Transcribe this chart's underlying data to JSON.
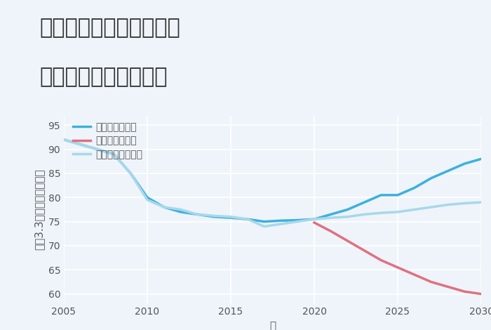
{
  "title_line1": "奈良県奈良市鹿野園町の",
  "title_line2": "中古戸建ての価格推移",
  "xlabel": "年",
  "ylabel": "坪（3.3㎡）単価（万円）",
  "background_color": "#eef4fa",
  "plot_bg_color": "#eef4fa",
  "grid_color": "#ffffff",
  "ylim": [
    58,
    97
  ],
  "xlim": [
    2005,
    2030
  ],
  "yticks": [
    60,
    65,
    70,
    75,
    80,
    85,
    90,
    95
  ],
  "xticks": [
    2005,
    2010,
    2015,
    2020,
    2025,
    2030
  ],
  "good_x": [
    2005,
    2006,
    2007,
    2008,
    2009,
    2010,
    2011,
    2012,
    2013,
    2014,
    2015,
    2016,
    2017,
    2018,
    2019,
    2020,
    2021,
    2022,
    2023,
    2024,
    2025,
    2026,
    2027,
    2028,
    2029,
    2030
  ],
  "good_y": [
    92,
    91,
    90,
    89,
    85,
    80,
    78,
    77,
    76.5,
    76,
    75.8,
    75.5,
    75,
    75.2,
    75.3,
    75.5,
    76.5,
    77.5,
    79,
    80.5,
    80.5,
    82,
    84,
    85.5,
    87,
    88
  ],
  "bad_x": [
    2020,
    2021,
    2022,
    2023,
    2024,
    2025,
    2026,
    2027,
    2028,
    2029,
    2030
  ],
  "bad_y": [
    74.8,
    73,
    71,
    69,
    67,
    65.5,
    64,
    62.5,
    61.5,
    60.5,
    60
  ],
  "normal_x": [
    2005,
    2006,
    2007,
    2008,
    2009,
    2010,
    2011,
    2012,
    2013,
    2014,
    2015,
    2016,
    2017,
    2018,
    2019,
    2020,
    2021,
    2022,
    2023,
    2024,
    2025,
    2026,
    2027,
    2028,
    2029,
    2030
  ],
  "normal_y": [
    92,
    91,
    90,
    89,
    85,
    79.5,
    78,
    77.5,
    76.5,
    76.2,
    76,
    75.5,
    74,
    74.5,
    75,
    75.5,
    75.8,
    76,
    76.5,
    76.8,
    77,
    77.5,
    78,
    78.5,
    78.8,
    79
  ],
  "good_color": "#3cb0e0",
  "bad_color": "#e07080",
  "normal_color": "#a8d8ea",
  "good_label": "グッドシナリオ",
  "bad_label": "バッドシナリオ",
  "normal_label": "ノーマルシナリオ",
  "line_width": 2.5,
  "title_fontsize": 22,
  "axis_fontsize": 11,
  "tick_fontsize": 10,
  "legend_fontsize": 10
}
